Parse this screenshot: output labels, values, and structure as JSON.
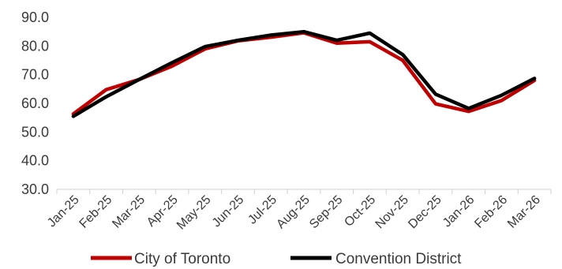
{
  "chart_data": {
    "type": "line",
    "categories": [
      "Jan-25",
      "Feb-25",
      "Mar-25",
      "Apr-25",
      "May-25",
      "Jun-25",
      "Jul-25",
      "Aug-25",
      "Sep-25",
      "Oct-25",
      "Nov-25",
      "Dec-25",
      "Jan-26",
      "Feb-26",
      "Mar-26"
    ],
    "series": [
      {
        "name": "City of Toronto",
        "color": "#c00000",
        "values": [
          56.3,
          64.8,
          68.3,
          73.0,
          79.0,
          81.8,
          83.1,
          84.6,
          81.0,
          81.5,
          75.0,
          59.8,
          57.2,
          61.0,
          68.0
        ]
      },
      {
        "name": "Convention District",
        "color": "#000000",
        "values": [
          55.5,
          62.3,
          68.3,
          74.2,
          79.8,
          82.0,
          83.8,
          85.0,
          82.0,
          84.5,
          77.0,
          63.2,
          58.2,
          62.8,
          68.7
        ]
      }
    ],
    "yticks": [
      "30.0",
      "40.0",
      "50.0",
      "60.0",
      "70.0",
      "80.0",
      "90.0"
    ],
    "ylim": [
      30,
      90
    ],
    "xlabel": "",
    "ylabel": "",
    "title": "",
    "grid": false,
    "legend_position": "bottom"
  }
}
